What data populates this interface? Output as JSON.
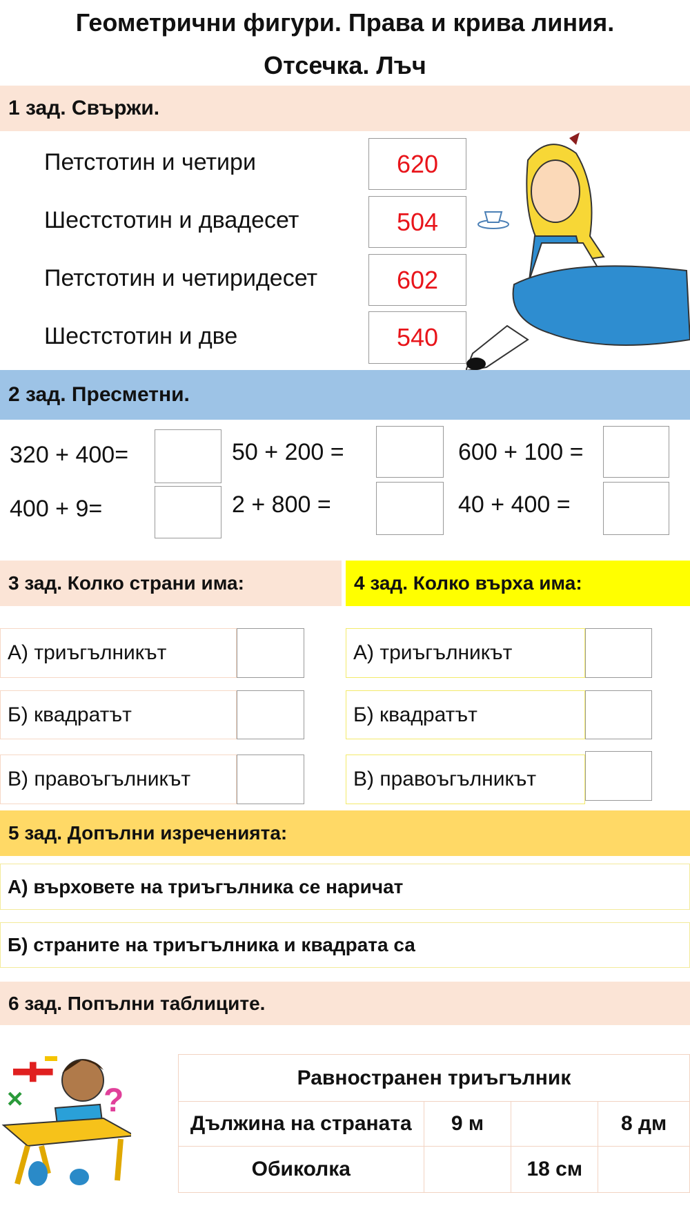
{
  "title": {
    "line1": "Геометрични фигури. Права и крива линия.",
    "line2": "Отсечка. Лъч"
  },
  "task1": {
    "heading": "1 зад. Свържи.",
    "words": [
      "Петстотин и четири",
      "Шестстотин и двадесет",
      "Петстотин и четиридесет",
      "Шестстотин и две"
    ],
    "numbers": [
      "620",
      "504",
      "602",
      "540"
    ]
  },
  "task2": {
    "heading": "2 зад. Пресметни.",
    "expressions": [
      "320 + 400=",
      "400 + 9=",
      "50 + 200 =",
      "2 + 800 =",
      "600 + 100 =",
      "40 + 400 ="
    ]
  },
  "task3": {
    "heading": "3 зад. Колко страни има:",
    "items": [
      "А) триъгълникът",
      "Б) квадратът",
      "В) правоъгълникът"
    ]
  },
  "task4": {
    "heading": "4 зад. Колко върха има:",
    "items": [
      "А) триъгълникът",
      "Б) квадратът",
      "В) правоъгълникът"
    ]
  },
  "task5": {
    "heading": "5 зад. Допълни изреченията:",
    "sentences": [
      "А) върховете на триъгълника се наричат",
      "Б) страните на триъгълника и квадрата са"
    ]
  },
  "task6": {
    "heading": "6 зад. Попълни таблиците.",
    "table": {
      "title": "Равностранен триъгълник",
      "rows": [
        [
          "Дължина на страната",
          "9 м",
          "",
          "8 дм"
        ],
        [
          "Обиколка",
          "",
          "18 см",
          ""
        ]
      ]
    }
  },
  "colors": {
    "peach": "#fbe4d6",
    "blue": "#9dc3e6",
    "yellow": "#ffff00",
    "gold": "#ffd966",
    "red": "#e8141a"
  }
}
